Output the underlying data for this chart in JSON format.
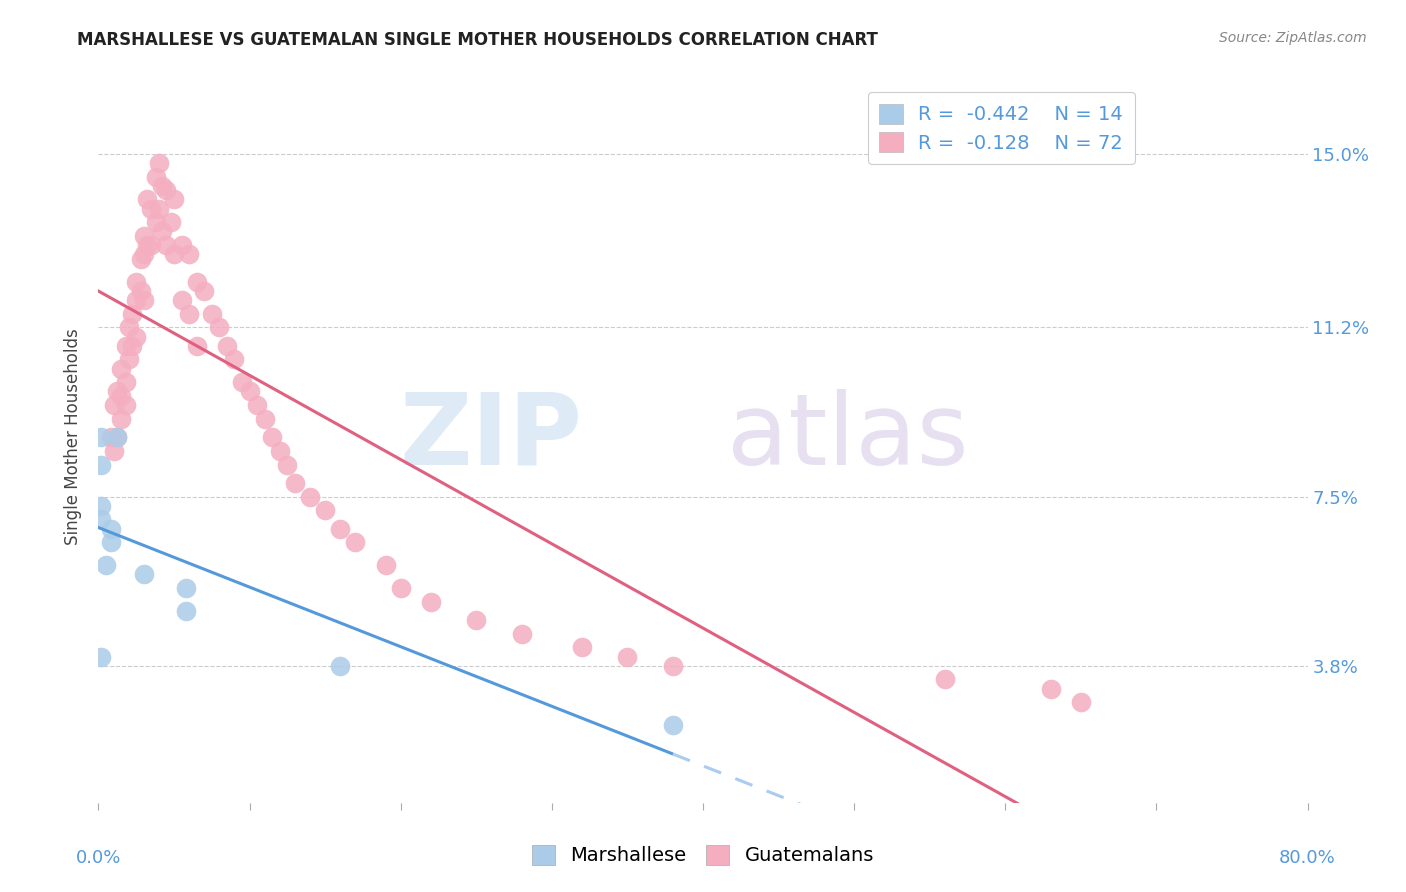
{
  "title": "MARSHALLESE VS GUATEMALAN SINGLE MOTHER HOUSEHOLDS CORRELATION CHART",
  "source": "Source: ZipAtlas.com",
  "ylabel": "Single Mother Households",
  "ytick_labels": [
    "3.8%",
    "7.5%",
    "11.2%",
    "15.0%"
  ],
  "ytick_values": [
    0.038,
    0.075,
    0.112,
    0.15
  ],
  "xmin": 0.0,
  "xmax": 0.8,
  "ymin": 0.008,
  "ymax": 0.168,
  "marshallese_x": [
    0.002,
    0.012,
    0.002,
    0.002,
    0.002,
    0.008,
    0.008,
    0.005,
    0.03,
    0.058,
    0.058,
    0.002,
    0.16,
    0.38
  ],
  "marshallese_y": [
    0.088,
    0.088,
    0.082,
    0.073,
    0.07,
    0.068,
    0.065,
    0.06,
    0.058,
    0.055,
    0.05,
    0.04,
    0.038,
    0.025
  ],
  "guatemalan_x": [
    0.008,
    0.01,
    0.01,
    0.012,
    0.012,
    0.015,
    0.015,
    0.015,
    0.018,
    0.018,
    0.018,
    0.02,
    0.02,
    0.022,
    0.022,
    0.025,
    0.025,
    0.025,
    0.028,
    0.028,
    0.03,
    0.03,
    0.03,
    0.032,
    0.032,
    0.035,
    0.035,
    0.038,
    0.038,
    0.04,
    0.04,
    0.042,
    0.042,
    0.045,
    0.045,
    0.048,
    0.05,
    0.05,
    0.055,
    0.055,
    0.06,
    0.06,
    0.065,
    0.065,
    0.07,
    0.075,
    0.08,
    0.085,
    0.09,
    0.095,
    0.1,
    0.105,
    0.11,
    0.115,
    0.12,
    0.125,
    0.13,
    0.14,
    0.15,
    0.16,
    0.17,
    0.19,
    0.2,
    0.22,
    0.25,
    0.28,
    0.32,
    0.35,
    0.38,
    0.56,
    0.63,
    0.65
  ],
  "guatemalan_y": [
    0.088,
    0.095,
    0.085,
    0.098,
    0.088,
    0.103,
    0.097,
    0.092,
    0.108,
    0.1,
    0.095,
    0.112,
    0.105,
    0.115,
    0.108,
    0.122,
    0.118,
    0.11,
    0.127,
    0.12,
    0.132,
    0.128,
    0.118,
    0.14,
    0.13,
    0.138,
    0.13,
    0.145,
    0.135,
    0.148,
    0.138,
    0.143,
    0.133,
    0.142,
    0.13,
    0.135,
    0.14,
    0.128,
    0.13,
    0.118,
    0.128,
    0.115,
    0.122,
    0.108,
    0.12,
    0.115,
    0.112,
    0.108,
    0.105,
    0.1,
    0.098,
    0.095,
    0.092,
    0.088,
    0.085,
    0.082,
    0.078,
    0.075,
    0.072,
    0.068,
    0.065,
    0.06,
    0.055,
    0.052,
    0.048,
    0.045,
    0.042,
    0.04,
    0.038,
    0.035,
    0.033,
    0.03
  ],
  "marshallese_color": "#aacce8",
  "guatemalan_color": "#f4aec0",
  "marshallese_line_color": "#5599dd",
  "marshallese_line_dash_color": "#aaccee",
  "guatemalan_line_color": "#e06080",
  "background_color": "#ffffff",
  "grid_color": "#cccccc",
  "watermark_zip_color": "#c8ddf0",
  "watermark_atlas_color": "#d8cce8",
  "legend_box_color": "#dddddd",
  "right_axis_color": "#5599dd",
  "title_fontsize": 12,
  "source_fontsize": 10,
  "legend_fontsize": 14,
  "axis_label_fontsize": 12,
  "tick_fontsize": 13
}
